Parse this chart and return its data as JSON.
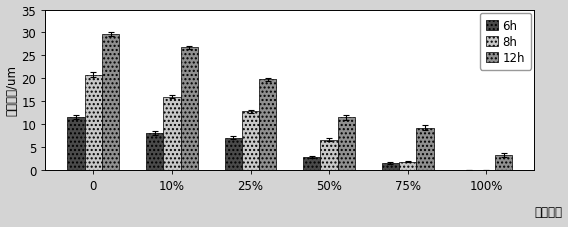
{
  "categories": [
    "0",
    "10%",
    "25%",
    "50%",
    "75%",
    "100%"
  ],
  "xlabel_extra": "滤液浓度",
  "ylabel": "芽管长度/um",
  "series_names": [
    "6h",
    "8h",
    "12h"
  ],
  "values": {
    "6h": [
      11.5,
      8.0,
      7.0,
      2.8,
      1.5,
      0.0
    ],
    "8h": [
      20.8,
      16.0,
      12.8,
      6.6,
      1.8,
      0.0
    ],
    "12h": [
      29.7,
      26.8,
      19.8,
      11.5,
      9.2,
      3.3
    ]
  },
  "errors": {
    "6h": [
      0.5,
      0.4,
      0.3,
      0.3,
      0.15,
      0.0
    ],
    "8h": [
      0.6,
      0.4,
      0.35,
      0.35,
      0.2,
      0.0
    ],
    "12h": [
      0.45,
      0.35,
      0.35,
      0.55,
      0.5,
      0.4
    ]
  },
  "bar_colors": [
    "#4a4a4a",
    "#c8c8c8",
    "#909090"
  ],
  "bar_hatches": [
    "....",
    "....",
    "...."
  ],
  "ylim": [
    0,
    35
  ],
  "yticks": [
    0,
    5,
    10,
    15,
    20,
    25,
    30,
    35
  ],
  "bar_width": 0.22,
  "fig_bg": "#d4d4d4",
  "ax_bg": "#ffffff",
  "fontsize": 8.5
}
